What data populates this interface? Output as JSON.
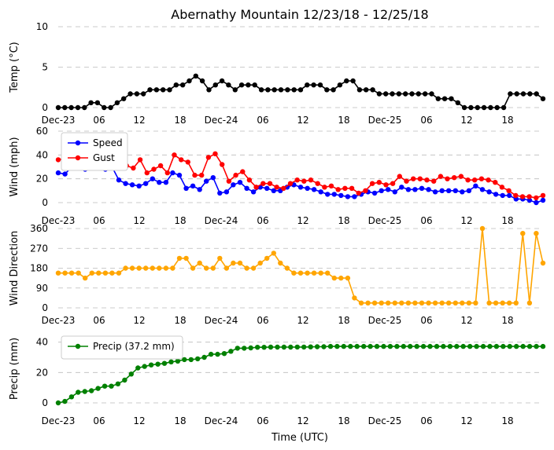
{
  "chart_data": {
    "type": "line",
    "title": "Abernathy Mountain 12/23/18 - 12/25/18",
    "xlabel": "Time (UTC)",
    "x_hours_labels": [
      "Dec-23",
      "06",
      "12",
      "18",
      "Dec-24",
      "06",
      "12",
      "18",
      "Dec-25",
      "06",
      "12",
      "18"
    ],
    "panels": [
      {
        "id": "temp",
        "ylabel": "Temp (°C)",
        "ylim": [
          0,
          10
        ],
        "yticks": [
          0,
          5,
          10
        ],
        "grid": true,
        "legend": null,
        "series": [
          {
            "color": "#000000",
            "values": [
              0,
              0,
              0,
              0,
              0,
              0.6,
              0.6,
              0,
              0,
              0.6,
              1.1,
              1.7,
              1.7,
              1.7,
              2.2,
              2.2,
              2.2,
              2.2,
              2.8,
              2.8,
              3.3,
              3.9,
              3.3,
              2.2,
              2.8,
              3.3,
              2.8,
              2.2,
              2.8,
              2.8,
              2.8,
              2.2,
              2.2,
              2.2,
              2.2,
              2.2,
              2.2,
              2.2,
              2.8,
              2.8,
              2.8,
              2.2,
              2.2,
              2.8,
              3.3,
              3.3,
              2.2,
              2.2,
              2.2,
              1.7,
              1.7,
              1.7,
              1.7,
              1.7,
              1.7,
              1.7,
              1.7,
              1.7,
              1.1,
              1.1,
              1.1,
              0.6,
              0,
              0,
              0,
              0,
              0,
              0,
              0,
              1.7,
              1.7,
              1.7,
              1.7,
              1.7,
              1.1
            ]
          }
        ]
      },
      {
        "id": "wind",
        "ylabel": "Wind (mph)",
        "ylim": [
          0,
          60
        ],
        "yticks": [
          0,
          20,
          40,
          60
        ],
        "grid": true,
        "legend": "top-left",
        "series": [
          {
            "name": "Speed",
            "color": "#0000ff",
            "values": [
              25,
              24,
              30,
              31,
              28,
              32,
              33,
              28,
              30,
              19,
              16,
              15,
              14,
              16,
              20,
              17,
              17,
              25,
              23,
              12,
              14,
              11,
              18,
              21,
              8,
              9,
              15,
              17,
              12,
              9,
              13,
              12,
              10,
              10,
              13,
              15,
              13,
              12,
              11,
              9,
              7,
              7,
              6,
              5,
              5,
              7,
              9,
              8,
              10,
              11,
              9,
              13,
              11,
              11,
              12,
              11,
              9,
              10,
              10,
              10,
              9,
              10,
              14,
              11,
              9,
              7,
              6,
              6,
              3,
              3,
              2,
              0,
              2
            ]
          },
          {
            "name": "Gust",
            "color": "#ff0000",
            "values": [
              36,
              37,
              50,
              48,
              49,
              51,
              50,
              48,
              45,
              40,
              31,
              29,
              36,
              25,
              28,
              31,
              25,
              40,
              36,
              34,
              23,
              23,
              38,
              41,
              32,
              18,
              23,
              26,
              19,
              13,
              16,
              16,
              13,
              12,
              16,
              19,
              18,
              19,
              16,
              13,
              14,
              11,
              12,
              12,
              8,
              10,
              16,
              17,
              15,
              16,
              22,
              18,
              20,
              20,
              19,
              18,
              22,
              20,
              21,
              22,
              19,
              19,
              20,
              19,
              17,
              13,
              10,
              6,
              5,
              5,
              4,
              6
            ]
          }
        ]
      },
      {
        "id": "dir",
        "ylabel": "Wind Direction",
        "ylim": [
          0,
          360
        ],
        "yticks": [
          0,
          90,
          180,
          270,
          360
        ],
        "grid": true,
        "legend": null,
        "series": [
          {
            "color": "#ffa500",
            "values": [
              158,
              158,
              158,
              158,
              135,
              158,
              158,
              158,
              158,
              158,
              180,
              180,
              180,
              180,
              180,
              180,
              180,
              180,
              225,
              225,
              180,
              203,
              180,
              180,
              225,
              180,
              203,
              203,
              180,
              180,
              203,
              225,
              248,
              203,
              180,
              158,
              158,
              158,
              158,
              158,
              158,
              135,
              135,
              135,
              45,
              22,
              22,
              22,
              22,
              22,
              22,
              22,
              22,
              22,
              22,
              22,
              22,
              22,
              22,
              22,
              22,
              22,
              22,
              360,
              22,
              22,
              22,
              22,
              22,
              338,
              22,
              338,
              203
            ]
          }
        ]
      },
      {
        "id": "precip",
        "ylabel": "Precip (mm)",
        "ylim": [
          0,
          45
        ],
        "yticks": [
          0,
          20,
          40
        ],
        "grid": true,
        "legend": "top-left",
        "series": [
          {
            "name": "Precip (37.2 mm)",
            "color": "#008000",
            "values": [
              0,
              1,
              4,
              7,
              7.5,
              8,
              9.5,
              11,
              11,
              12.5,
              15,
              19,
              23,
              24,
              25,
              25.5,
              26,
              27,
              27.5,
              28.5,
              28.5,
              29,
              30,
              32,
              32,
              32.5,
              34,
              36,
              36,
              36.2,
              36.6,
              36.6,
              36.7,
              36.7,
              36.7,
              36.7,
              36.8,
              36.8,
              36.9,
              37,
              37,
              37.2,
              37.2,
              37.2,
              37.2,
              37.2,
              37.2,
              37.2,
              37.2,
              37.2,
              37.2,
              37.2,
              37.2,
              37.2,
              37.2,
              37.2,
              37.2,
              37.2,
              37.2,
              37.2,
              37.2,
              37.2,
              37.2,
              37.2,
              37.2,
              37.2,
              37.2,
              37.2,
              37.2,
              37.2,
              37.2,
              37.2,
              37.2,
              37.2
            ]
          }
        ]
      }
    ]
  }
}
